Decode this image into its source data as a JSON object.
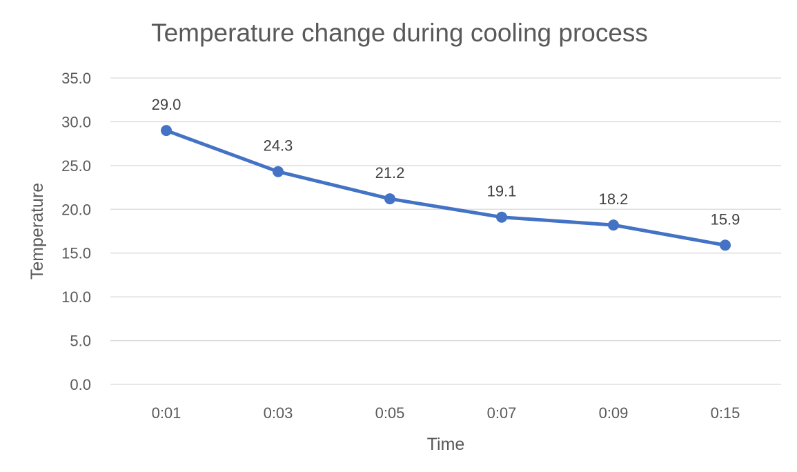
{
  "chart_data": {
    "type": "line",
    "title": "Temperature change during cooling process",
    "xlabel": "Time",
    "ylabel": "Temperature",
    "categories": [
      "0:01",
      "0:03",
      "0:05",
      "0:07",
      "0:09",
      "0:15"
    ],
    "series": [
      {
        "values": [
          29.0,
          24.3,
          21.2,
          19.1,
          18.2,
          15.9
        ],
        "color": "#4472c4",
        "marker": "circle"
      }
    ],
    "ylim": [
      0,
      35
    ],
    "ytick_step": 5,
    "ytick_labels": [
      "0.0",
      "5.0",
      "10.0",
      "15.0",
      "20.0",
      "25.0",
      "30.0",
      "35.0"
    ],
    "data_labels": [
      "29.0",
      "24.3",
      "21.2",
      "19.1",
      "18.2",
      "15.9"
    ],
    "grid": true,
    "legend": "none"
  }
}
